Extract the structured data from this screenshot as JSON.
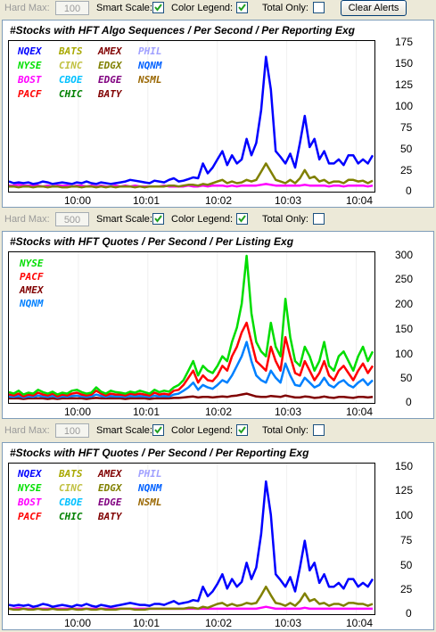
{
  "colors": {
    "NQEX": "#0000ff",
    "BATS": "#a8a800",
    "AMEX": "#800000",
    "PHIL": "#a0a0ff",
    "NYSE": "#00e000",
    "CINC": "#c0c040",
    "EDGX": "#808000",
    "NQNM": "#0060ff",
    "BOST": "#ff00ff",
    "CBOE": "#00c0ff",
    "EDGE": "#800080",
    "NSML": "#996600",
    "PACF": "#ff0000",
    "CHIC": "#008000",
    "BATY": "#800000",
    "NYSE2": "#00dd00",
    "PACF2": "#ff0000",
    "AMEX2": "#800000",
    "NQNM2": "#0080ff"
  },
  "toolbars": [
    {
      "hard_max_label": "Hard Max:",
      "hard_max_value": "100",
      "smart_scale_label": "Smart Scale:",
      "smart_scale_checked": true,
      "color_legend_label": "Color Legend:",
      "color_legend_checked": true,
      "total_only_label": "Total Only:",
      "total_only_checked": false,
      "clear_alerts_label": "Clear Alerts"
    },
    {
      "hard_max_label": "Hard Max:",
      "hard_max_value": "500",
      "smart_scale_label": "Smart Scale:",
      "smart_scale_checked": true,
      "color_legend_label": "Color Legend:",
      "color_legend_checked": true,
      "total_only_label": "Total Only:",
      "total_only_checked": false
    },
    {
      "hard_max_label": "Hard Max:",
      "hard_max_value": "100",
      "smart_scale_label": "Smart Scale:",
      "smart_scale_checked": true,
      "color_legend_label": "Color Legend:",
      "color_legend_checked": true,
      "total_only_label": "Total Only:",
      "total_only_checked": false
    }
  ],
  "chart_data": [
    {
      "type": "line",
      "title": "#Stocks with HFT Algo Sequences / Per Second / Per Reporting Exg",
      "legend": [
        [
          "NQEX",
          "BATS",
          "AMEX",
          "PHIL"
        ],
        [
          "NYSE",
          "CINC",
          "EDGX",
          "NQNM"
        ],
        [
          "BOST",
          "CBOE",
          "EDGE",
          "NSML"
        ],
        [
          "PACF",
          "CHIC",
          "BATY"
        ]
      ],
      "ylim": [
        0,
        175
      ],
      "yticks": [
        "175",
        "150",
        "125",
        "100",
        "75",
        "50",
        "25",
        "0"
      ],
      "xticks": [
        "10:00",
        "10:01",
        "10:02",
        "10:03",
        "10:04"
      ],
      "series": [
        {
          "name": "NQEX",
          "color": "#0000ff",
          "values": [
            8,
            6,
            7,
            6,
            7,
            5,
            6,
            8,
            7,
            5,
            6,
            7,
            6,
            5,
            7,
            6,
            8,
            6,
            5,
            7,
            6,
            5,
            6,
            7,
            8,
            10,
            9,
            8,
            7,
            6,
            9,
            8,
            7,
            10,
            12,
            8,
            9,
            11,
            13,
            12,
            30,
            18,
            25,
            35,
            45,
            28,
            40,
            30,
            35,
            60,
            40,
            55,
            95,
            160,
            120,
            45,
            38,
            30,
            42,
            25,
            55,
            88,
            50,
            60,
            35,
            45,
            30,
            30,
            35,
            28,
            40,
            40,
            30,
            35,
            30,
            40
          ]
        },
        {
          "name": "EDGX",
          "color": "#808000",
          "values": [
            2,
            2,
            1,
            2,
            2,
            1,
            2,
            2,
            1,
            2,
            2,
            1,
            1,
            2,
            2,
            1,
            2,
            2,
            1,
            2,
            1,
            2,
            1,
            2,
            2,
            2,
            1,
            2,
            1,
            2,
            2,
            2,
            2,
            3,
            3,
            2,
            3,
            4,
            4,
            3,
            5,
            4,
            6,
            8,
            10,
            6,
            8,
            6,
            7,
            10,
            8,
            10,
            20,
            30,
            20,
            10,
            8,
            6,
            10,
            6,
            12,
            22,
            12,
            14,
            8,
            10,
            6,
            8,
            8,
            6,
            10,
            10,
            8,
            9,
            6,
            9
          ]
        },
        {
          "name": "BOST",
          "color": "#ff00ff",
          "values": [
            3,
            3,
            4,
            3,
            3,
            3,
            3,
            2,
            3,
            2,
            3,
            3,
            3,
            2,
            3,
            3,
            2,
            3,
            2,
            3,
            2,
            2,
            3,
            2,
            3,
            2,
            3,
            2,
            2,
            2,
            2,
            2,
            3,
            2,
            2,
            2,
            2,
            3,
            2,
            2,
            3,
            2,
            3,
            3,
            3,
            2,
            3,
            2,
            3,
            3,
            3,
            3,
            4,
            5,
            4,
            3,
            3,
            3,
            3,
            3,
            3,
            4,
            3,
            3,
            3,
            3,
            2,
            3,
            3,
            2,
            3,
            3,
            3,
            3,
            2,
            3
          ]
        }
      ]
    },
    {
      "type": "line",
      "title": "#Stocks with HFT Quotes / Per Second / Per Listing Exg",
      "legend": [
        [
          "NYSE"
        ],
        [
          "PACF"
        ],
        [
          "AMEX"
        ],
        [
          "NQNM"
        ]
      ],
      "ylim": [
        0,
        300
      ],
      "yticks": [
        "300",
        "250",
        "200",
        "150",
        "100",
        "50",
        "0"
      ],
      "xticks": [
        "10:00",
        "10:01",
        "10:02",
        "10:03",
        "10:04"
      ],
      "series": [
        {
          "name": "NYSE",
          "color": "#00dd00",
          "values": [
            15,
            12,
            18,
            10,
            14,
            12,
            20,
            15,
            12,
            16,
            10,
            14,
            12,
            18,
            20,
            15,
            12,
            14,
            25,
            16,
            12,
            18,
            15,
            14,
            12,
            16,
            14,
            18,
            15,
            12,
            20,
            15,
            18,
            16,
            25,
            30,
            40,
            60,
            80,
            50,
            70,
            60,
            55,
            70,
            90,
            80,
            120,
            150,
            200,
            300,
            180,
            120,
            100,
            90,
            160,
            110,
            90,
            210,
            130,
            80,
            70,
            110,
            90,
            60,
            80,
            120,
            70,
            60,
            90,
            100,
            80,
            60,
            90,
            110,
            80,
            100
          ]
        },
        {
          "name": "PACF",
          "color": "#ff0000",
          "values": [
            10,
            8,
            12,
            6,
            10,
            8,
            14,
            10,
            8,
            12,
            6,
            10,
            8,
            12,
            14,
            10,
            8,
            10,
            18,
            12,
            8,
            12,
            10,
            10,
            8,
            12,
            10,
            12,
            10,
            8,
            14,
            10,
            12,
            10,
            18,
            20,
            30,
            45,
            60,
            35,
            50,
            40,
            38,
            50,
            70,
            60,
            90,
            110,
            140,
            160,
            120,
            80,
            70,
            60,
            110,
            80,
            60,
            130,
            90,
            55,
            50,
            80,
            60,
            40,
            55,
            80,
            50,
            40,
            60,
            70,
            55,
            40,
            60,
            75,
            55,
            70
          ]
        },
        {
          "name": "NQNM",
          "color": "#0080ff",
          "values": [
            6,
            5,
            7,
            4,
            6,
            5,
            8,
            6,
            5,
            7,
            4,
            6,
            5,
            7,
            8,
            6,
            5,
            6,
            10,
            7,
            5,
            7,
            6,
            6,
            5,
            7,
            6,
            7,
            6,
            5,
            8,
            6,
            7,
            6,
            10,
            12,
            18,
            25,
            35,
            20,
            30,
            25,
            22,
            30,
            40,
            35,
            50,
            70,
            90,
            120,
            80,
            50,
            40,
            35,
            60,
            45,
            35,
            75,
            50,
            30,
            28,
            45,
            35,
            25,
            30,
            45,
            30,
            25,
            35,
            40,
            30,
            25,
            35,
            42,
            30,
            40
          ]
        },
        {
          "name": "AMEX",
          "color": "#800000",
          "values": [
            2,
            2,
            2,
            1,
            2,
            2,
            2,
            2,
            1,
            2,
            1,
            2,
            2,
            2,
            2,
            2,
            1,
            2,
            3,
            2,
            2,
            2,
            2,
            2,
            1,
            2,
            2,
            2,
            2,
            1,
            2,
            2,
            2,
            2,
            3,
            3,
            4,
            5,
            6,
            4,
            5,
            5,
            4,
            5,
            6,
            5,
            7,
            8,
            10,
            12,
            9,
            6,
            5,
            5,
            7,
            6,
            5,
            8,
            6,
            4,
            4,
            6,
            5,
            3,
            4,
            6,
            4,
            3,
            5,
            5,
            4,
            3,
            5,
            5,
            4,
            5
          ]
        }
      ]
    },
    {
      "type": "line",
      "title": "#Stocks with HFT Quotes / Per Second / Per Reporting Exg",
      "legend": [
        [
          "NQEX",
          "BATS",
          "AMEX",
          "PHIL"
        ],
        [
          "NYSE",
          "CINC",
          "EDGX",
          "NQNM"
        ],
        [
          "BOST",
          "CBOE",
          "EDGE",
          "NSML"
        ],
        [
          "PACF",
          "CHIC",
          "BATY"
        ]
      ],
      "ylim": [
        0,
        150
      ],
      "yticks": [
        "150",
        "125",
        "100",
        "75",
        "50",
        "25",
        "0"
      ],
      "xticks": [
        "10:00",
        "10:01",
        "10:02",
        "10:03",
        "10:04"
      ],
      "series": [
        {
          "name": "NQEX",
          "color": "#0000ff",
          "values": [
            6,
            5,
            6,
            5,
            6,
            4,
            5,
            7,
            6,
            4,
            5,
            6,
            5,
            4,
            6,
            5,
            7,
            5,
            4,
            6,
            5,
            4,
            5,
            6,
            7,
            8,
            7,
            6,
            6,
            5,
            7,
            7,
            6,
            8,
            10,
            7,
            8,
            9,
            11,
            10,
            25,
            15,
            20,
            28,
            38,
            23,
            33,
            25,
            30,
            50,
            33,
            45,
            80,
            135,
            100,
            38,
            32,
            25,
            35,
            20,
            45,
            73,
            42,
            50,
            29,
            38,
            25,
            25,
            29,
            23,
            33,
            33,
            25,
            29,
            25,
            33
          ]
        },
        {
          "name": "EDGX",
          "color": "#808000",
          "values": [
            2,
            1,
            1,
            2,
            1,
            1,
            2,
            1,
            1,
            2,
            1,
            1,
            1,
            2,
            1,
            1,
            2,
            1,
            1,
            2,
            1,
            1,
            1,
            2,
            2,
            2,
            1,
            1,
            1,
            2,
            2,
            2,
            2,
            2,
            2,
            2,
            2,
            3,
            3,
            2,
            4,
            3,
            5,
            7,
            8,
            5,
            7,
            5,
            6,
            8,
            7,
            8,
            16,
            25,
            16,
            8,
            7,
            5,
            8,
            5,
            10,
            18,
            10,
            12,
            7,
            8,
            5,
            7,
            7,
            5,
            8,
            8,
            7,
            7,
            5,
            7
          ]
        },
        {
          "name": "BOST",
          "color": "#ff00ff",
          "values": [
            2,
            2,
            3,
            2,
            2,
            2,
            2,
            2,
            2,
            2,
            2,
            2,
            2,
            2,
            2,
            2,
            2,
            2,
            2,
            2,
            2,
            2,
            2,
            2,
            2,
            2,
            2,
            2,
            2,
            2,
            2,
            2,
            2,
            2,
            2,
            2,
            2,
            2,
            2,
            2,
            2,
            2,
            2,
            2,
            2,
            2,
            2,
            2,
            2,
            2,
            2,
            2,
            3,
            4,
            3,
            2,
            2,
            2,
            2,
            2,
            2,
            3,
            2,
            2,
            2,
            2,
            2,
            2,
            2,
            2,
            2,
            2,
            2,
            2,
            2,
            2
          ]
        }
      ]
    }
  ]
}
